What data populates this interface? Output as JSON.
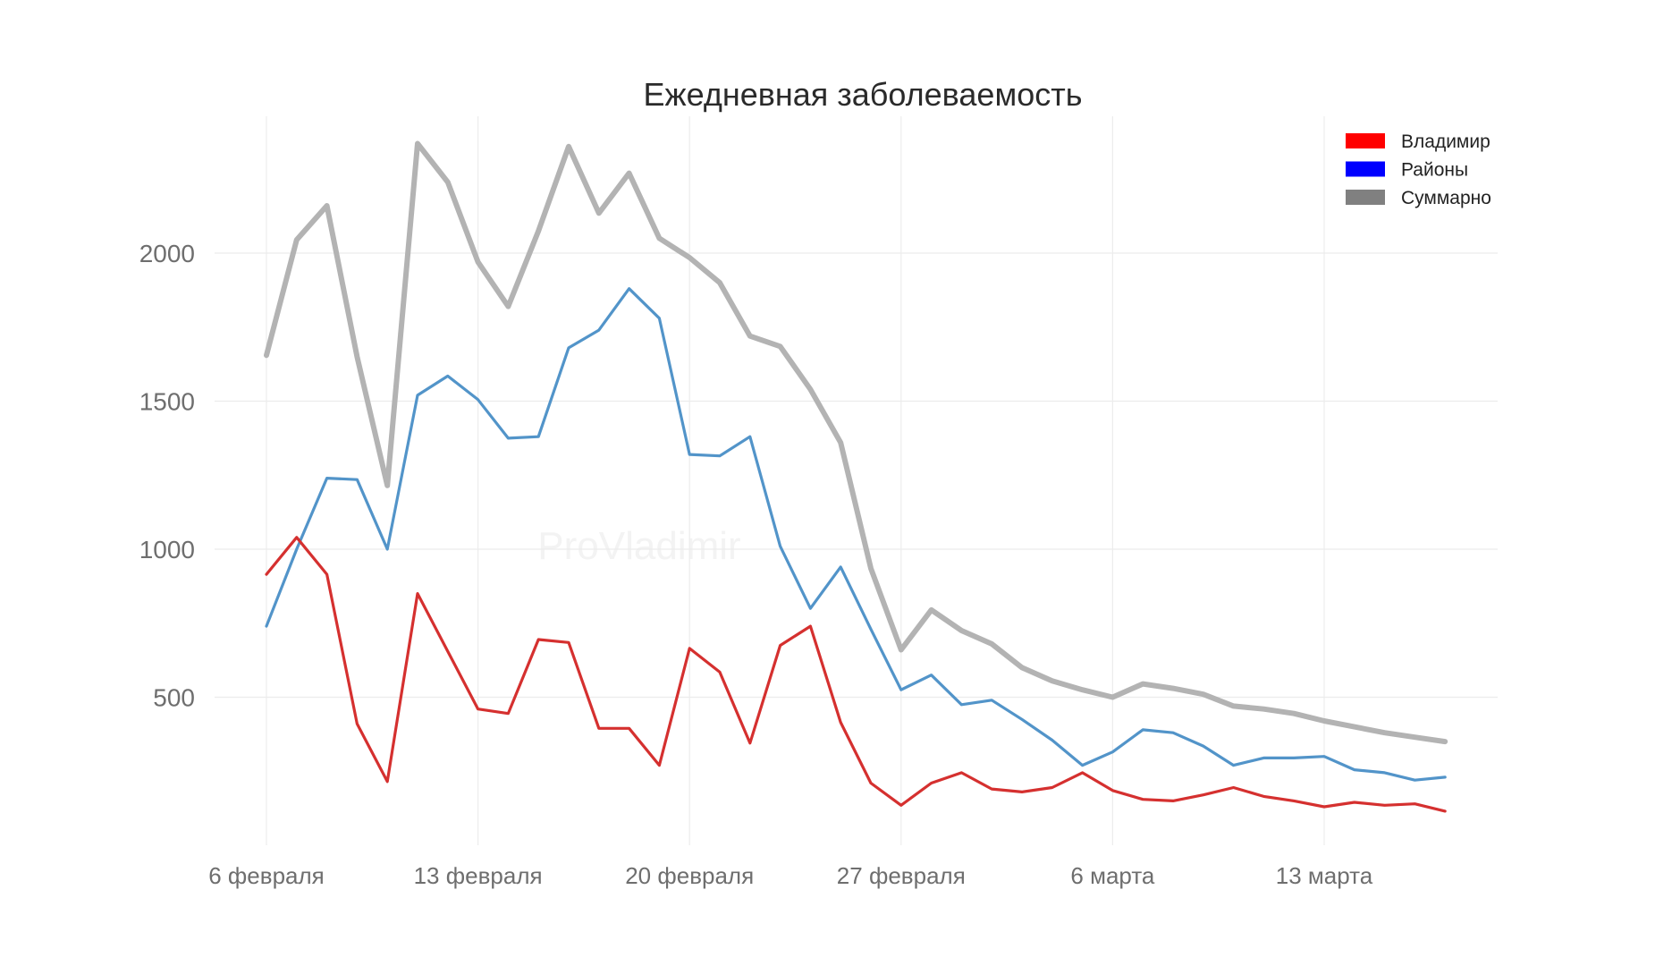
{
  "chart_data": {
    "type": "line",
    "title": "Ежедневная заболеваемость",
    "xlabel": "",
    "ylabel": "",
    "ylim": [
      0,
      2450
    ],
    "yticks": [
      500,
      1000,
      1500,
      2000
    ],
    "xticks": [
      {
        "index": 0,
        "label": "6 февраля"
      },
      {
        "index": 7,
        "label": "13 февраля"
      },
      {
        "index": 14,
        "label": "20 февраля"
      },
      {
        "index": 21,
        "label": "27 февраля"
      },
      {
        "index": 28,
        "label": "6 марта"
      },
      {
        "index": 35,
        "label": "13 марта"
      }
    ],
    "n_days": 40,
    "x_range": [
      0,
      41
    ],
    "watermark": "ProVladimir",
    "legend_position": "top-right",
    "series": [
      {
        "name": "Суммарно",
        "color": "#b3b3b3",
        "legend_color": "#808080",
        "values": [
          1655,
          2045,
          2160,
          1650,
          1215,
          2370,
          2240,
          1970,
          1820,
          2075,
          2360,
          2135,
          2270,
          2050,
          1985,
          1900,
          1720,
          1685,
          1540,
          1360,
          935,
          660,
          795,
          725,
          680,
          600,
          555,
          525,
          500,
          545,
          530,
          510,
          470,
          460,
          445,
          420,
          400,
          380,
          365,
          350
        ]
      },
      {
        "name": "Районы",
        "color": "#5294c9",
        "legend_color": "#0000ff",
        "values": [
          740,
          1000,
          1240,
          1235,
          1000,
          1520,
          1585,
          1505,
          1375,
          1380,
          1680,
          1740,
          1880,
          1780,
          1320,
          1315,
          1380,
          1010,
          800,
          940,
          730,
          525,
          575,
          475,
          490,
          425,
          355,
          270,
          315,
          390,
          380,
          335,
          270,
          295,
          295,
          300,
          255,
          245,
          220,
          230
        ]
      },
      {
        "name": "Владимир",
        "color": "#d5302f",
        "legend_color": "#ff0000",
        "values": [
          915,
          1040,
          915,
          410,
          215,
          850,
          655,
          460,
          445,
          695,
          685,
          395,
          395,
          270,
          665,
          585,
          345,
          675,
          740,
          415,
          210,
          135,
          210,
          245,
          190,
          180,
          195,
          245,
          185,
          155,
          150,
          170,
          195,
          165,
          150,
          130,
          145,
          135,
          140,
          115
        ]
      }
    ]
  }
}
